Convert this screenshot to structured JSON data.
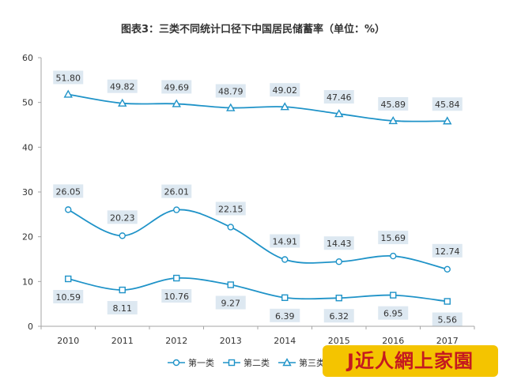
{
  "chart_data": {
    "type": "line",
    "title": "图表3：三类不同统计口径下中国居民储蓄率（单位：%）",
    "categories": [
      "2010",
      "2011",
      "2012",
      "2013",
      "2014",
      "2015",
      "2016",
      "2017"
    ],
    "ylim": [
      0,
      60
    ],
    "yticks": [
      0,
      10,
      20,
      30,
      40,
      50,
      60
    ],
    "ytick_labels": [
      "0",
      "10",
      "20",
      "30",
      "40",
      "50",
      "60"
    ],
    "grid": false,
    "legend_position": "bottom",
    "series": [
      {
        "name": "第一类",
        "marker": "circle",
        "color": "#1f93c8",
        "values": [
          26.05,
          20.23,
          26.01,
          22.15,
          14.91,
          14.43,
          15.69,
          12.74
        ],
        "labels": [
          "26.05",
          "20.23",
          "26.01",
          "22.15",
          "14.91",
          "14.43",
          "15.69",
          "12.74"
        ]
      },
      {
        "name": "第二类",
        "marker": "square",
        "color": "#1f93c8",
        "values": [
          10.59,
          8.11,
          10.76,
          9.27,
          6.39,
          6.32,
          6.95,
          5.56
        ],
        "labels": [
          "10.59",
          "8.11",
          "10.76",
          "9.27",
          "6.39",
          "6.32",
          "6.95",
          "5.56"
        ]
      },
      {
        "name": "第三类",
        "marker": "triangle",
        "color": "#1f93c8",
        "values": [
          51.8,
          49.82,
          49.69,
          48.79,
          49.02,
          47.46,
          45.89,
          45.84
        ],
        "labels": [
          "51.80",
          "49.82",
          "49.69",
          "48.79",
          "49.02",
          "47.46",
          "45.89",
          "45.84"
        ]
      }
    ],
    "colors": {
      "line": "#1f93c8",
      "label_bg": "#dde8f1",
      "axis": "#a6a6a6",
      "text": "#333333"
    }
  },
  "watermark": {
    "text": "J近人網上家園",
    "bg_color": "#f4c400",
    "text_color": "#c5191f"
  }
}
